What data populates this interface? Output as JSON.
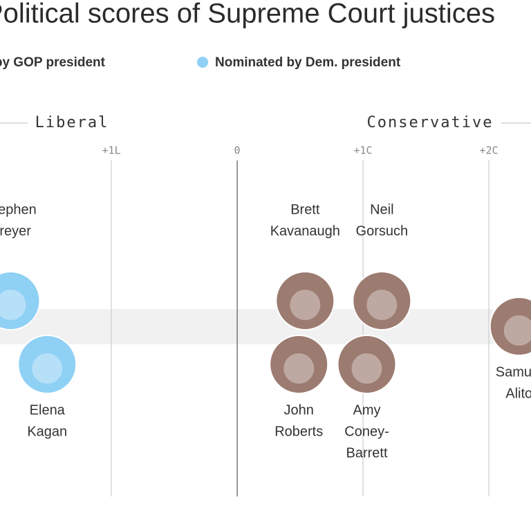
{
  "chart_data": {
    "type": "scatter",
    "title": "Political scores of Supreme Court justices",
    "annotations": [
      "Liberal",
      "Conservative"
    ],
    "xlim": [
      -1.885,
      2.335
    ],
    "xticks": [
      {
        "value": -1,
        "label": "+1L"
      },
      0,
      {
        "value": 1,
        "label": "+1C"
      },
      {
        "value": 2,
        "label": "+2C"
      }
    ],
    "series": [
      {
        "name": "Nominated by GOP president",
        "color": "#9c7b70",
        "labels": [
          [
            "Brett",
            "Kavanaugh"
          ],
          [
            "Neil",
            "Gorsuch"
          ],
          [
            "John",
            "Roberts"
          ],
          [
            "Amy",
            "Coney-",
            "Barrett"
          ],
          [
            "Samuel",
            "Alito"
          ]
        ],
        "values": [
          0.54,
          1.15,
          0.49,
          1.03,
          2.24
        ]
      },
      {
        "name": "Nominated by Dem. president",
        "color": "#8fd0f5",
        "labels": [
          [
            "Stephen",
            "Breyer"
          ],
          [
            "Elena",
            "Kagan"
          ]
        ],
        "values": [
          -1.8,
          -1.51
        ]
      }
    ]
  }
}
